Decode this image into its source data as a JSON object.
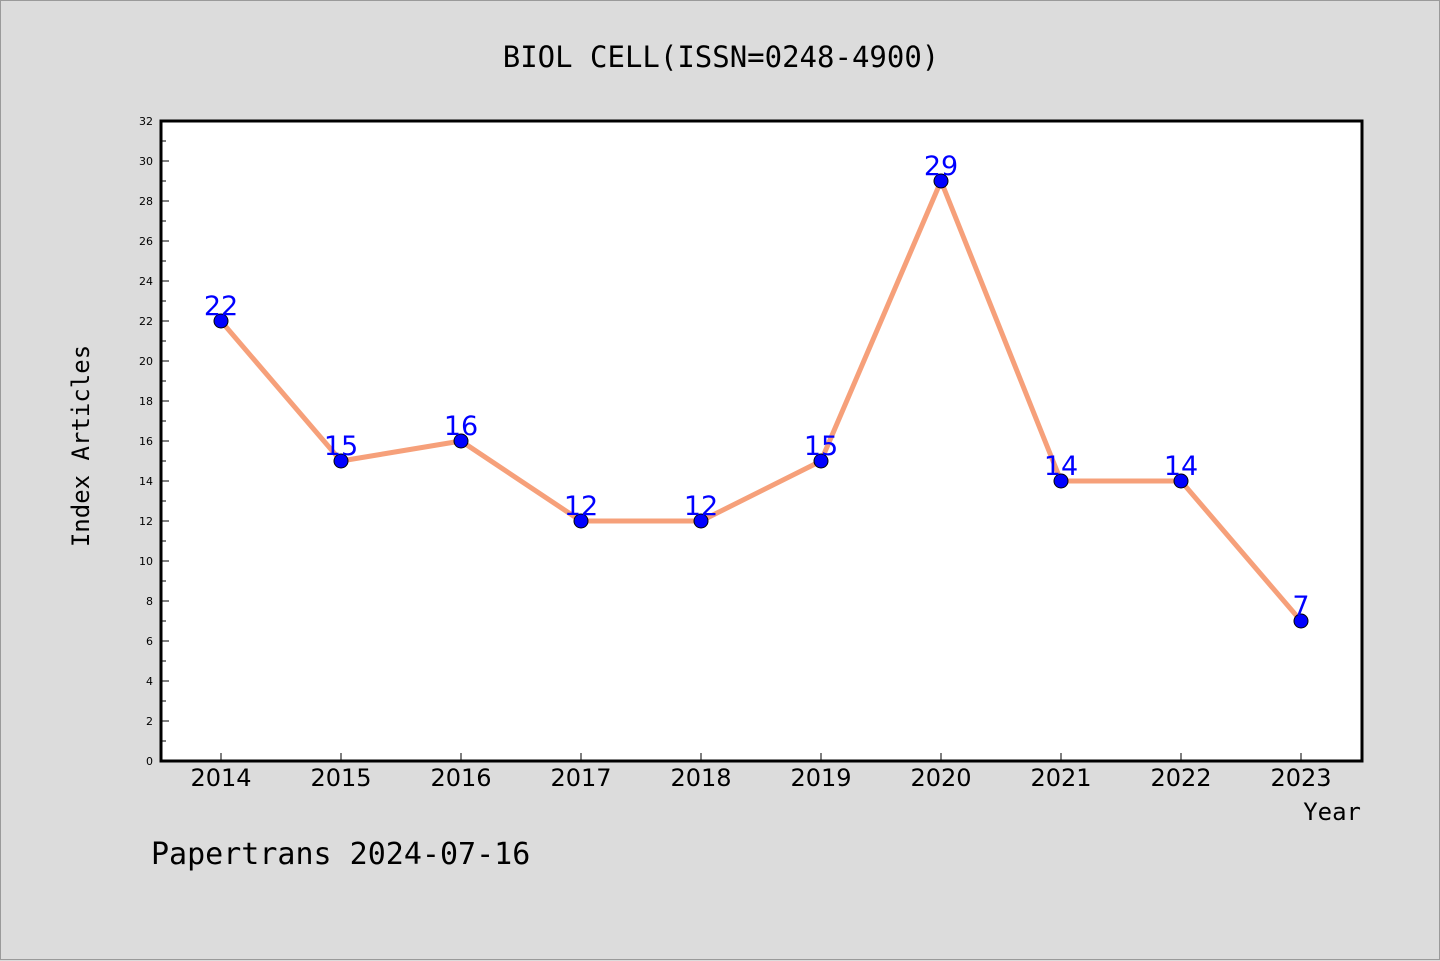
{
  "chart_data": {
    "type": "line",
    "title": "BIOL CELL(ISSN=0248-4900)",
    "xlabel": "Year",
    "ylabel": "Index Articles",
    "categories": [
      "2014",
      "2015",
      "2016",
      "2017",
      "2018",
      "2019",
      "2020",
      "2021",
      "2022",
      "2023"
    ],
    "series": [
      {
        "values": [
          22,
          15,
          16,
          12,
          12,
          15,
          29,
          14,
          14,
          7
        ]
      }
    ],
    "ylim": [
      0,
      32
    ],
    "yticks": [
      "0",
      "2",
      "4",
      "6",
      "8",
      "10",
      "12",
      "14",
      "16",
      "18",
      "20",
      "22",
      "24",
      "26",
      "28",
      "30",
      "32"
    ],
    "grid": false,
    "legend": "none",
    "colors": {
      "line": "#f6a07a",
      "marker": "#0000ff",
      "marker_edge": "#000000",
      "data_label": "#0000ff",
      "plot_background": "#ffffff",
      "page_background": "#dcdcdc"
    }
  },
  "footer": {
    "text": "Papertrans 2024-07-16"
  }
}
